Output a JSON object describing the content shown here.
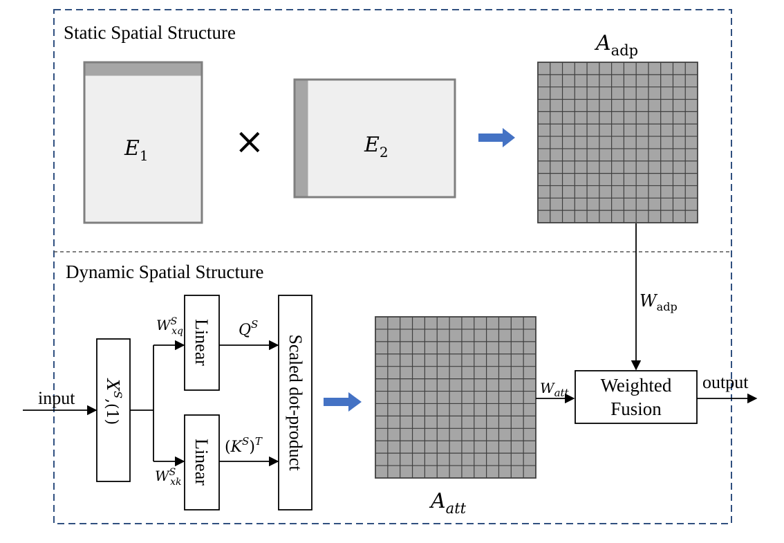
{
  "sections": {
    "static_title": "Static Spatial Structure",
    "dynamic_title": "Dynamic Spatial Structure"
  },
  "static": {
    "e1": {
      "var": "E",
      "sub": "1"
    },
    "times_symbol": "×",
    "e2": {
      "var": "E",
      "sub": "2"
    },
    "a_adp": {
      "var": "A",
      "sub": "adp"
    }
  },
  "dynamic": {
    "input_label": "input",
    "x_label": {
      "base": "X",
      "sup": "S",
      "rest": ",(1)"
    },
    "wxq": {
      "base": "W",
      "sup": "S",
      "sub": "xq"
    },
    "wxk": {
      "base": "W",
      "sup": "S",
      "sub": "xk"
    },
    "linear_top": "Linear",
    "linear_bottom": "Linear",
    "qs": {
      "base": "Q",
      "sup": "S"
    },
    "kst": {
      "open": "(",
      "base": "K",
      "sup": "S",
      "close": ")",
      "sup2": "T"
    },
    "scaled_dot": "Scaled dot-product",
    "a_att": {
      "var": "A",
      "sub": "att"
    },
    "w_att": {
      "base": "W",
      "sub": "att"
    },
    "w_adp": {
      "base": "W",
      "sub": "adp"
    },
    "fusion": {
      "line1": "Weighted",
      "line2": "Fusion"
    },
    "output_label": "output"
  },
  "colors": {
    "frame_dash": "#2f4f7f",
    "box_fill": "#efefef",
    "box_stroke": "#7f7f7f",
    "strip": "#a6a6a6",
    "grid_fill": "#a6a6a6",
    "grid_line": "#3f3f3f",
    "blue_arrow": "#4472c4",
    "line": "#000000"
  }
}
